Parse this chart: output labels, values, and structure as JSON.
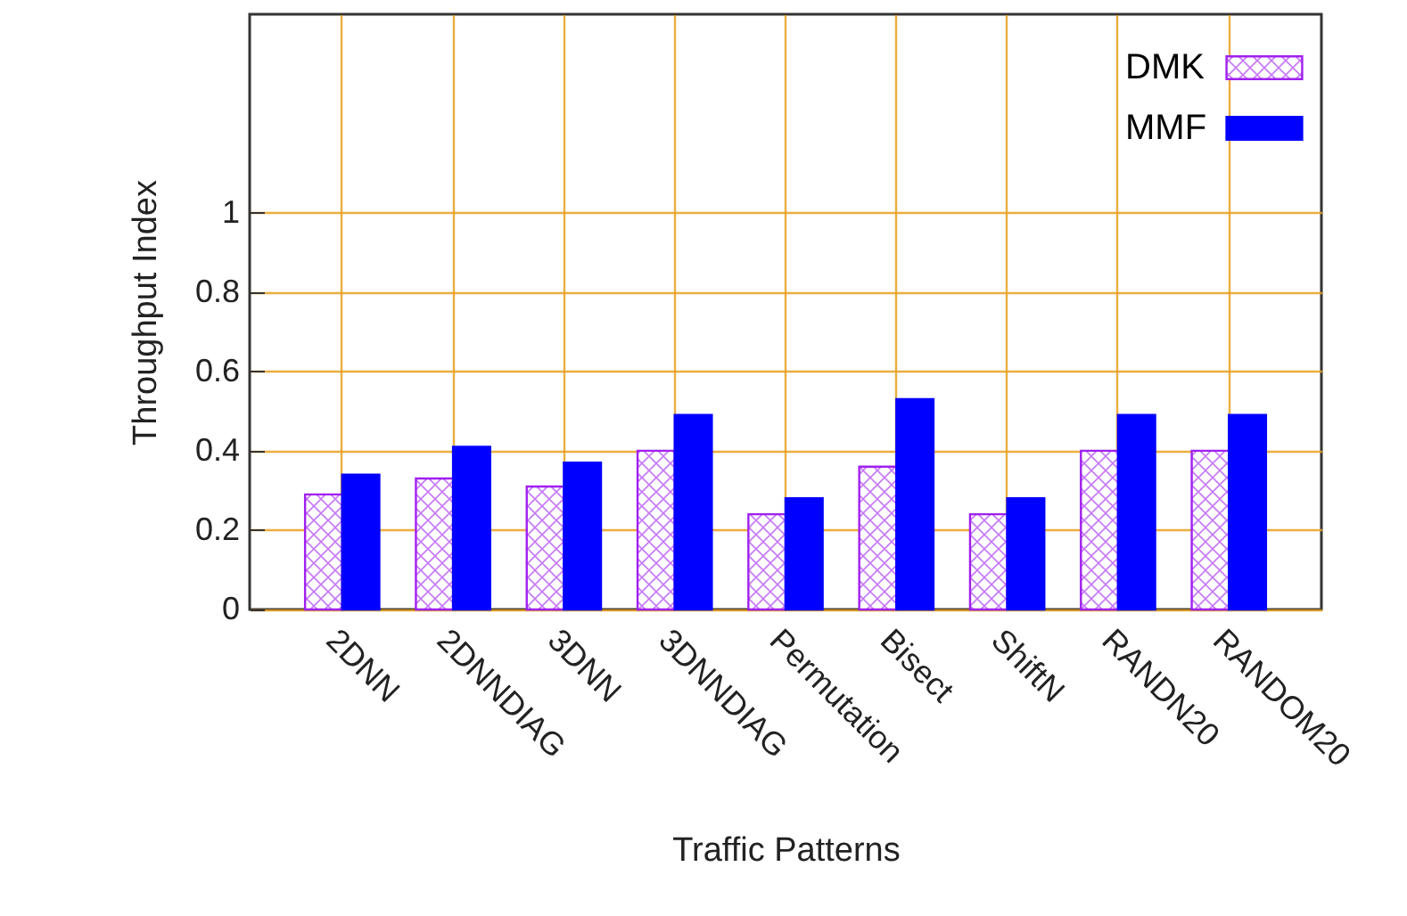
{
  "chart_data": {
    "type": "bar",
    "xlabel": "Traffic Patterns",
    "ylabel": "Throughput Index",
    "categories": [
      "2DNN",
      "2DNNDIAG",
      "3DNN",
      "3DNNDIAG",
      "Permutation",
      "Bisect",
      "ShiftN",
      "RANDN20",
      "RANDOM20"
    ],
    "series": [
      {
        "name": "DMK",
        "color": "#a020f0",
        "values": [
          0.29,
          0.33,
          0.31,
          0.4,
          0.24,
          0.36,
          0.24,
          0.4,
          0.4
        ]
      },
      {
        "name": "MMF",
        "color": "#0000ff",
        "values": [
          0.34,
          0.41,
          0.37,
          0.49,
          0.28,
          0.53,
          0.28,
          0.49,
          0.49
        ]
      }
    ],
    "ylim": [
      0,
      1.5
    ],
    "yticks": [
      0,
      0.2,
      0.4,
      0.6,
      0.8,
      1
    ],
    "grid": true,
    "legend": "top right"
  }
}
